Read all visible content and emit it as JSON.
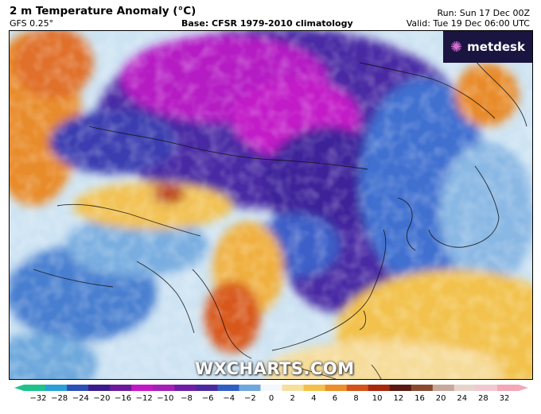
{
  "header": {
    "title": "2 m Temperature Anomaly (°C)",
    "model": "GFS 0.25°",
    "base": "Base: CFSR 1979-2010 climatology",
    "run": "Run: Sun 17 Dec 00Z",
    "valid": "Valid: Tue 19 Dec 06:00 UTC"
  },
  "logo": {
    "text": "metdesk",
    "icon": "metdesk-spark-icon"
  },
  "watermark": "WXCHARTS.COM",
  "legend": {
    "ticks": [
      "−32",
      "−28",
      "−24",
      "−20",
      "−16",
      "−12",
      "−10",
      "−8",
      "−6",
      "−4",
      "−2",
      "0",
      "2",
      "4",
      "6",
      "8",
      "10",
      "12",
      "16",
      "20",
      "24",
      "28",
      "32"
    ],
    "colors": [
      "#1fc28a",
      "#2a9fd8",
      "#2c4fb8",
      "#3b1c8c",
      "#6a1a9a",
      "#c218c8",
      "#a51fb8",
      "#6d1fa8",
      "#4a2aa0",
      "#2f5fc4",
      "#6ea8dc",
      "#f4f8fc",
      "#f6e0a0",
      "#f3c04a",
      "#ec8f2a",
      "#d5531a",
      "#a8280e",
      "#5a1a12",
      "#8a4a30",
      "#c8a898",
      "#e6d4cc",
      "#f2c8d0",
      "#f4a8b8"
    ],
    "min": -32,
    "max": 32
  }
}
